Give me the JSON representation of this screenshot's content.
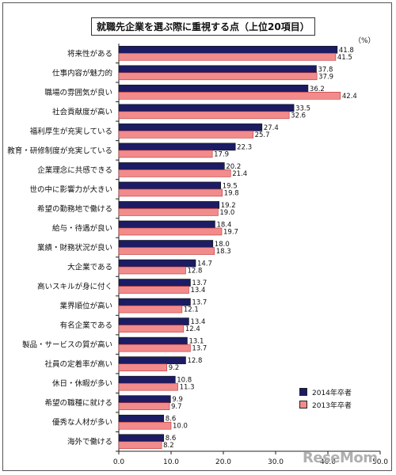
{
  "chart_data": {
    "type": "bar",
    "orientation": "horizontal",
    "title": "就職先企業を選ぶ際に重視する点（上位20項目）",
    "unit": "（%）",
    "categories": [
      "将来性がある",
      "仕事内容が魅力的",
      "職場の雰囲気が良い",
      "社会貢献度が高い",
      "福利厚生が充実している",
      "教育・研修制度が充実している",
      "企業理念に共感できる",
      "世の中に影響力が大きい",
      "希望の勤務地で働ける",
      "給与・待遇が良い",
      "業績・財務状況が良い",
      "大企業である",
      "高いスキルが身に付く",
      "業界順位が高い",
      "有名企業である",
      "製品・サービスの質が高い",
      "社員の定着率が高い",
      "休日・休暇が多い",
      "希望の職種に就ける",
      "優秀な人材が多い",
      "海外で働ける"
    ],
    "series": [
      {
        "name": "2014年卒者",
        "color": "#1c1c64",
        "values": [
          41.8,
          37.8,
          36.2,
          33.5,
          27.4,
          22.3,
          20.2,
          19.5,
          19.2,
          18.4,
          18.0,
          14.7,
          13.7,
          13.7,
          13.4,
          13.1,
          12.8,
          10.8,
          9.9,
          8.6,
          8.6
        ]
      },
      {
        "name": "2013年卒者",
        "color": "#f28b8b",
        "values": [
          41.5,
          37.9,
          42.4,
          32.6,
          25.7,
          17.9,
          21.4,
          19.8,
          19.0,
          19.7,
          18.3,
          12.8,
          13.4,
          12.1,
          12.4,
          13.7,
          9.2,
          11.3,
          9.7,
          10.0,
          8.2
        ]
      }
    ],
    "value_labels": {
      "2014年卒者": [
        "41.8",
        "37.8",
        "36.2",
        "33.5",
        "27.4",
        "22.3",
        "20.2",
        "19.5",
        "19.2",
        "18.4",
        "18.0",
        "14.7",
        "13.7",
        "13.7",
        "13.4",
        "13.1",
        "12.8",
        "10.8",
        "9.9",
        "8.6",
        "8.6"
      ],
      "2013年卒者": [
        "41.5",
        "37.9",
        "42.4",
        "32.6",
        "25.7",
        "17.9",
        "21.4",
        "19.8",
        "19.0",
        "19.7",
        "18.3",
        "12.8",
        "13.4",
        "12.1",
        "12.4",
        "13.7",
        "9.2",
        "11.3",
        "9.7",
        "10.0",
        "8.2"
      ]
    },
    "x_ticks": [
      "0.0",
      "10.0",
      "20.0",
      "30.0",
      "40.0",
      "50.0"
    ],
    "xlim": [
      0,
      50
    ],
    "grid": false,
    "legend_position": "bottom-right"
  },
  "watermark": "ReseMom"
}
